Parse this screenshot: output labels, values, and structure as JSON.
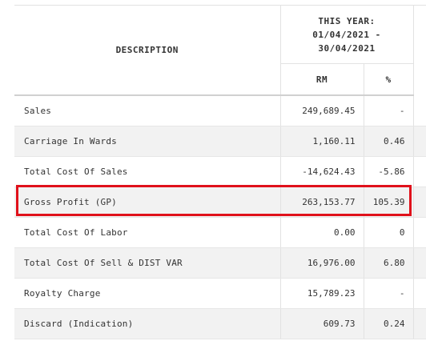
{
  "table": {
    "header": {
      "description": "DESCRIPTION",
      "period_line1": "THIS YEAR:",
      "period_line2": "01/04/2021 -",
      "period_line3": "30/04/2021",
      "unit_rm": "RM",
      "unit_pct": "%"
    },
    "rows": [
      {
        "description": "Sales",
        "rm": "249,689.45",
        "pct": "-"
      },
      {
        "description": "Carriage In Wards",
        "rm": "1,160.11",
        "pct": "0.46"
      },
      {
        "description": "Total Cost Of Sales",
        "rm": "-14,624.43",
        "pct": "-5.86"
      },
      {
        "description": "Gross Profit (GP)",
        "rm": "263,153.77",
        "pct": "105.39"
      },
      {
        "description": "Total Cost Of Labor",
        "rm": "0.00",
        "pct": "0"
      },
      {
        "description": "Total Cost Of Sell & DIST VAR",
        "rm": "16,976.00",
        "pct": "6.80"
      },
      {
        "description": "Royalty Charge",
        "rm": "15,789.23",
        "pct": "-"
      },
      {
        "description": "Discard (Indication)",
        "rm": "609.73",
        "pct": "0.24"
      }
    ]
  },
  "highlight": {
    "row": "Gross Profit (GP)",
    "color": "#e0111b"
  }
}
